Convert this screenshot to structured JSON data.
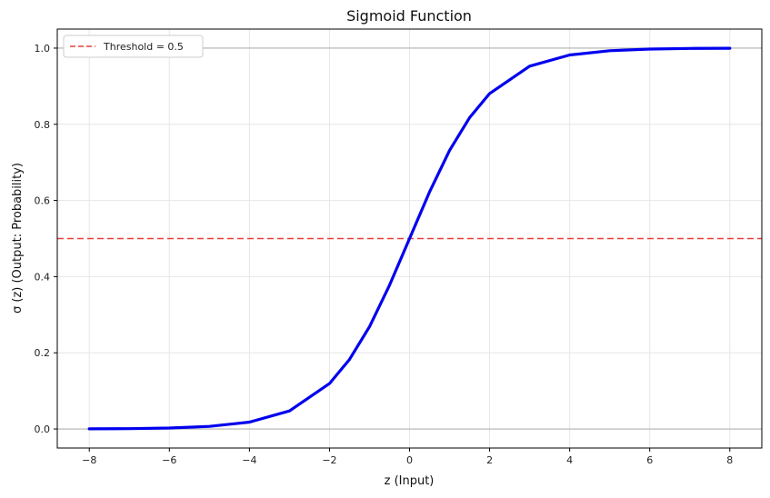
{
  "chart_data": {
    "type": "line",
    "title": "Sigmoid Function",
    "xlabel": "z (Input)",
    "ylabel": "σ (z) (Output: Probability)",
    "xlim": [
      -8.8,
      8.8
    ],
    "ylim": [
      -0.05,
      1.05
    ],
    "x_ticks": [
      -8,
      -6,
      -4,
      -2,
      0,
      2,
      4,
      6,
      8
    ],
    "x_tick_labels": [
      "−8",
      "−6",
      "−4",
      "−2",
      "0",
      "2",
      "4",
      "6",
      "8"
    ],
    "y_ticks": [
      0.0,
      0.2,
      0.4,
      0.6,
      0.8,
      1.0
    ],
    "y_tick_labels": [
      "0.0",
      "0.2",
      "0.4",
      "0.6",
      "0.8",
      "1.0"
    ],
    "grid": true,
    "legend_position": "top-left",
    "series": [
      {
        "color": "#0000ee",
        "x": [
          -8,
          -7,
          -6,
          -5,
          -4,
          -3,
          -2,
          -1.5,
          -1,
          -0.5,
          0,
          0.5,
          1,
          1.5,
          2,
          3,
          4,
          5,
          6,
          7,
          8
        ],
        "y": [
          0.0003,
          0.0009,
          0.0025,
          0.0067,
          0.018,
          0.0474,
          0.1192,
          0.1824,
          0.2689,
          0.3775,
          0.5,
          0.6225,
          0.7311,
          0.8176,
          0.8808,
          0.9526,
          0.982,
          0.9933,
          0.9975,
          0.9991,
          0.9997
        ]
      }
    ],
    "reference_lines": [
      {
        "orientation": "horizontal",
        "y": 0.5,
        "color": "#e8413c",
        "style": "dashed",
        "legend": "Threshold = 0.5"
      },
      {
        "orientation": "horizontal",
        "y": 0.0,
        "color": "#b0b0b0",
        "style": "solid"
      },
      {
        "orientation": "horizontal",
        "y": 1.0,
        "color": "#b0b0b0",
        "style": "solid"
      }
    ]
  }
}
